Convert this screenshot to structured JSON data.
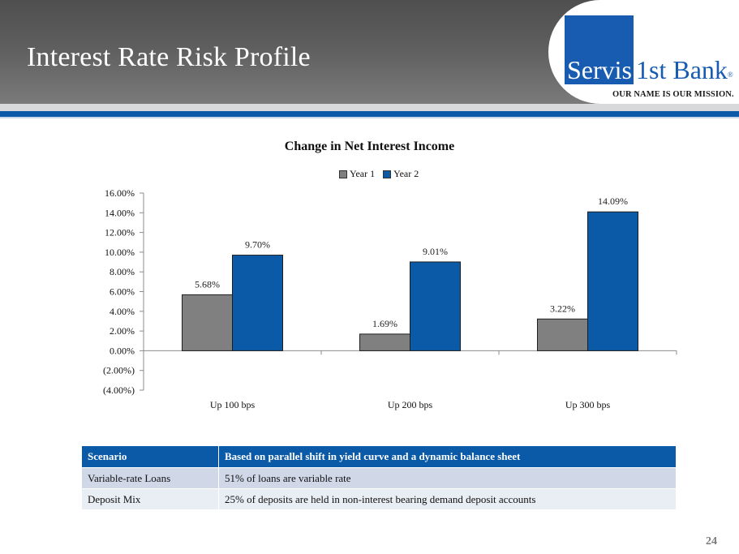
{
  "header": {
    "title": "Interest Rate Risk Profile",
    "logo_servis": "Servis",
    "logo_rest": "1st Bank",
    "logo_reg": "®",
    "tagline": "OUR NAME IS OUR MISSION."
  },
  "chart_data": {
    "type": "bar",
    "title": "Change in Net Interest Income",
    "xlabel": "",
    "ylabel": "",
    "categories": [
      "Up 100 bps",
      "Up 200 bps",
      "Up 300 bps"
    ],
    "series": [
      {
        "name": "Year 1",
        "values": [
          5.68,
          1.69,
          3.22
        ],
        "labels": [
          "5.68%",
          "1.69%",
          "3.22%"
        ],
        "color": "#808080"
      },
      {
        "name": "Year 2",
        "values": [
          9.7,
          9.01,
          14.09
        ],
        "labels": [
          "9.70%",
          "9.01%",
          "14.09%"
        ],
        "color": "#0b5aa8"
      }
    ],
    "ylim": [
      -4,
      16
    ],
    "yticks": [
      16,
      14,
      12,
      10,
      8,
      6,
      4,
      2,
      0,
      -2,
      -4
    ],
    "ytick_labels": [
      "16.00%",
      "14.00%",
      "12.00%",
      "10.00%",
      "8.00%",
      "6.00%",
      "4.00%",
      "2.00%",
      "0.00%",
      "(2.00%)",
      "(4.00%)"
    ],
    "legend_position": "top-center",
    "grid": false
  },
  "table": {
    "header": [
      "Scenario",
      "Based on parallel shift in yield curve and a dynamic balance sheet"
    ],
    "rows": [
      [
        "Variable-rate Loans",
        "51% of loans are variable rate"
      ],
      [
        "Deposit Mix",
        "25% of deposits are held in non-interest bearing demand deposit accounts"
      ]
    ]
  },
  "page_number": "24"
}
